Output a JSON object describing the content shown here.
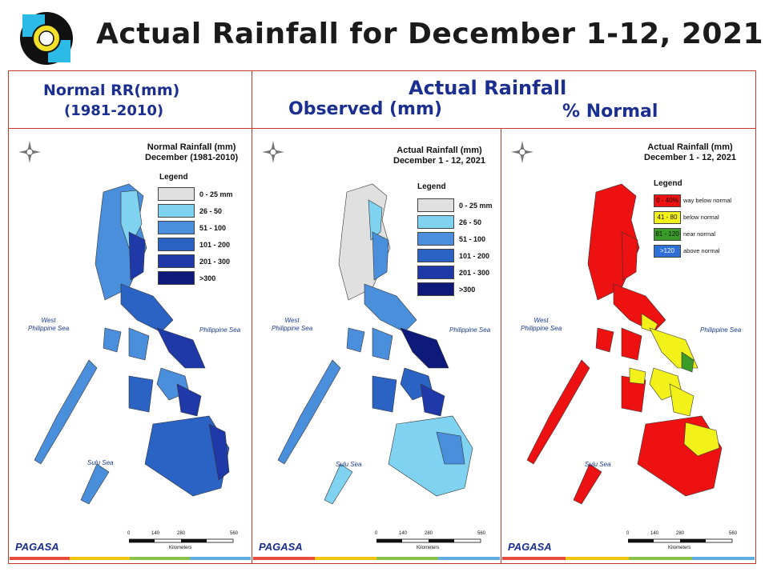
{
  "header": {
    "title": "Actual Rainfall for December 1-12, 2021",
    "normal_label_1": "Normal RR(mm)",
    "normal_label_2": "(1981-2010)",
    "actual_label": "Actual Rainfall",
    "observed_label": "Observed (mm)",
    "percent_label": "% Normal"
  },
  "panels": {
    "normal": {
      "title_1": "Normal Rainfall (mm)",
      "title_2": "December (1981-2010)",
      "legend_title": "Legend",
      "legend": [
        {
          "label": "0 - 25 mm",
          "color": "#e0e0e0"
        },
        {
          "label": "26 - 50",
          "color": "#7fd3f0"
        },
        {
          "label": "51 - 100",
          "color": "#4a8fdc"
        },
        {
          "label": "101 - 200",
          "color": "#2b63c4"
        },
        {
          "label": "201 - 300",
          "color": "#1f3aa8"
        },
        {
          "label": ">300",
          "color": "#0d1a7a"
        }
      ]
    },
    "observed": {
      "title_1": "Actual Rainfall (mm)",
      "title_2": "December 1 - 12, 2021",
      "legend_title": "Legend",
      "legend": [
        {
          "label": "0 - 25 mm",
          "color": "#e0e0e0"
        },
        {
          "label": "26 - 50",
          "color": "#7fd3f0"
        },
        {
          "label": "51 - 100",
          "color": "#4a8fdc"
        },
        {
          "label": "101 - 200",
          "color": "#2b63c4"
        },
        {
          "label": "201 - 300",
          "color": "#1f3aa8"
        },
        {
          "label": ">300",
          "color": "#0d1a7a"
        }
      ]
    },
    "percent": {
      "title_1": "Actual Rainfall (mm)",
      "title_2": "December 1 - 12, 2021",
      "legend_title": "Legend",
      "legend": [
        {
          "swatch": "0 - 40%",
          "label": "way below normal",
          "color": "#ee1111"
        },
        {
          "swatch": "41 - 80",
          "label": "below normal",
          "color": "#f2f21a"
        },
        {
          "swatch": "81 - 120",
          "label": "near normal",
          "color": "#3a9a2a"
        },
        {
          "swatch": ">120",
          "label": "above normal",
          "color": "#2f6fd8"
        }
      ]
    }
  },
  "map_labels": {
    "west_sea_1": "West",
    "west_sea_2": "Philippine Sea",
    "philippine_sea": "Philippine Sea",
    "sulu_sea_normal": "Sulu Sea",
    "sulu_sea_other": "Sulu Sea",
    "scale_ticks": [
      "0",
      "140",
      "280",
      "560"
    ],
    "scale_unit": "Kilometers",
    "brand": "PAGASA"
  },
  "colors": {
    "frame": "#c0392b",
    "header_text": "#1a2f8f",
    "strip": [
      "#e74c3c",
      "#f1c40f",
      "#8bc34a",
      "#5dade2"
    ]
  }
}
